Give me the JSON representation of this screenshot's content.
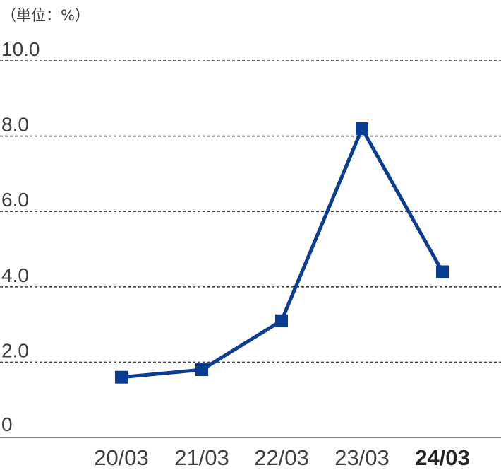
{
  "unit_label": "（単位：%）",
  "colors": {
    "series": "#0a3d91",
    "grid": "#444444",
    "text": "#3d3d3d"
  },
  "chart_data": {
    "type": "line",
    "title": "",
    "unit": "（単位：%）",
    "categories": [
      "20/03",
      "21/03",
      "22/03",
      "23/03",
      "24/03"
    ],
    "highlighted_category": "24/03",
    "series": [
      {
        "values": [
          1.6,
          1.8,
          3.1,
          8.2,
          4.4
        ]
      }
    ],
    "y_ticks": [
      "0",
      "2.0",
      "4.0",
      "6.0",
      "8.0",
      "10.0"
    ],
    "ylim": [
      0,
      10
    ],
    "grid": true,
    "marker": "square"
  }
}
